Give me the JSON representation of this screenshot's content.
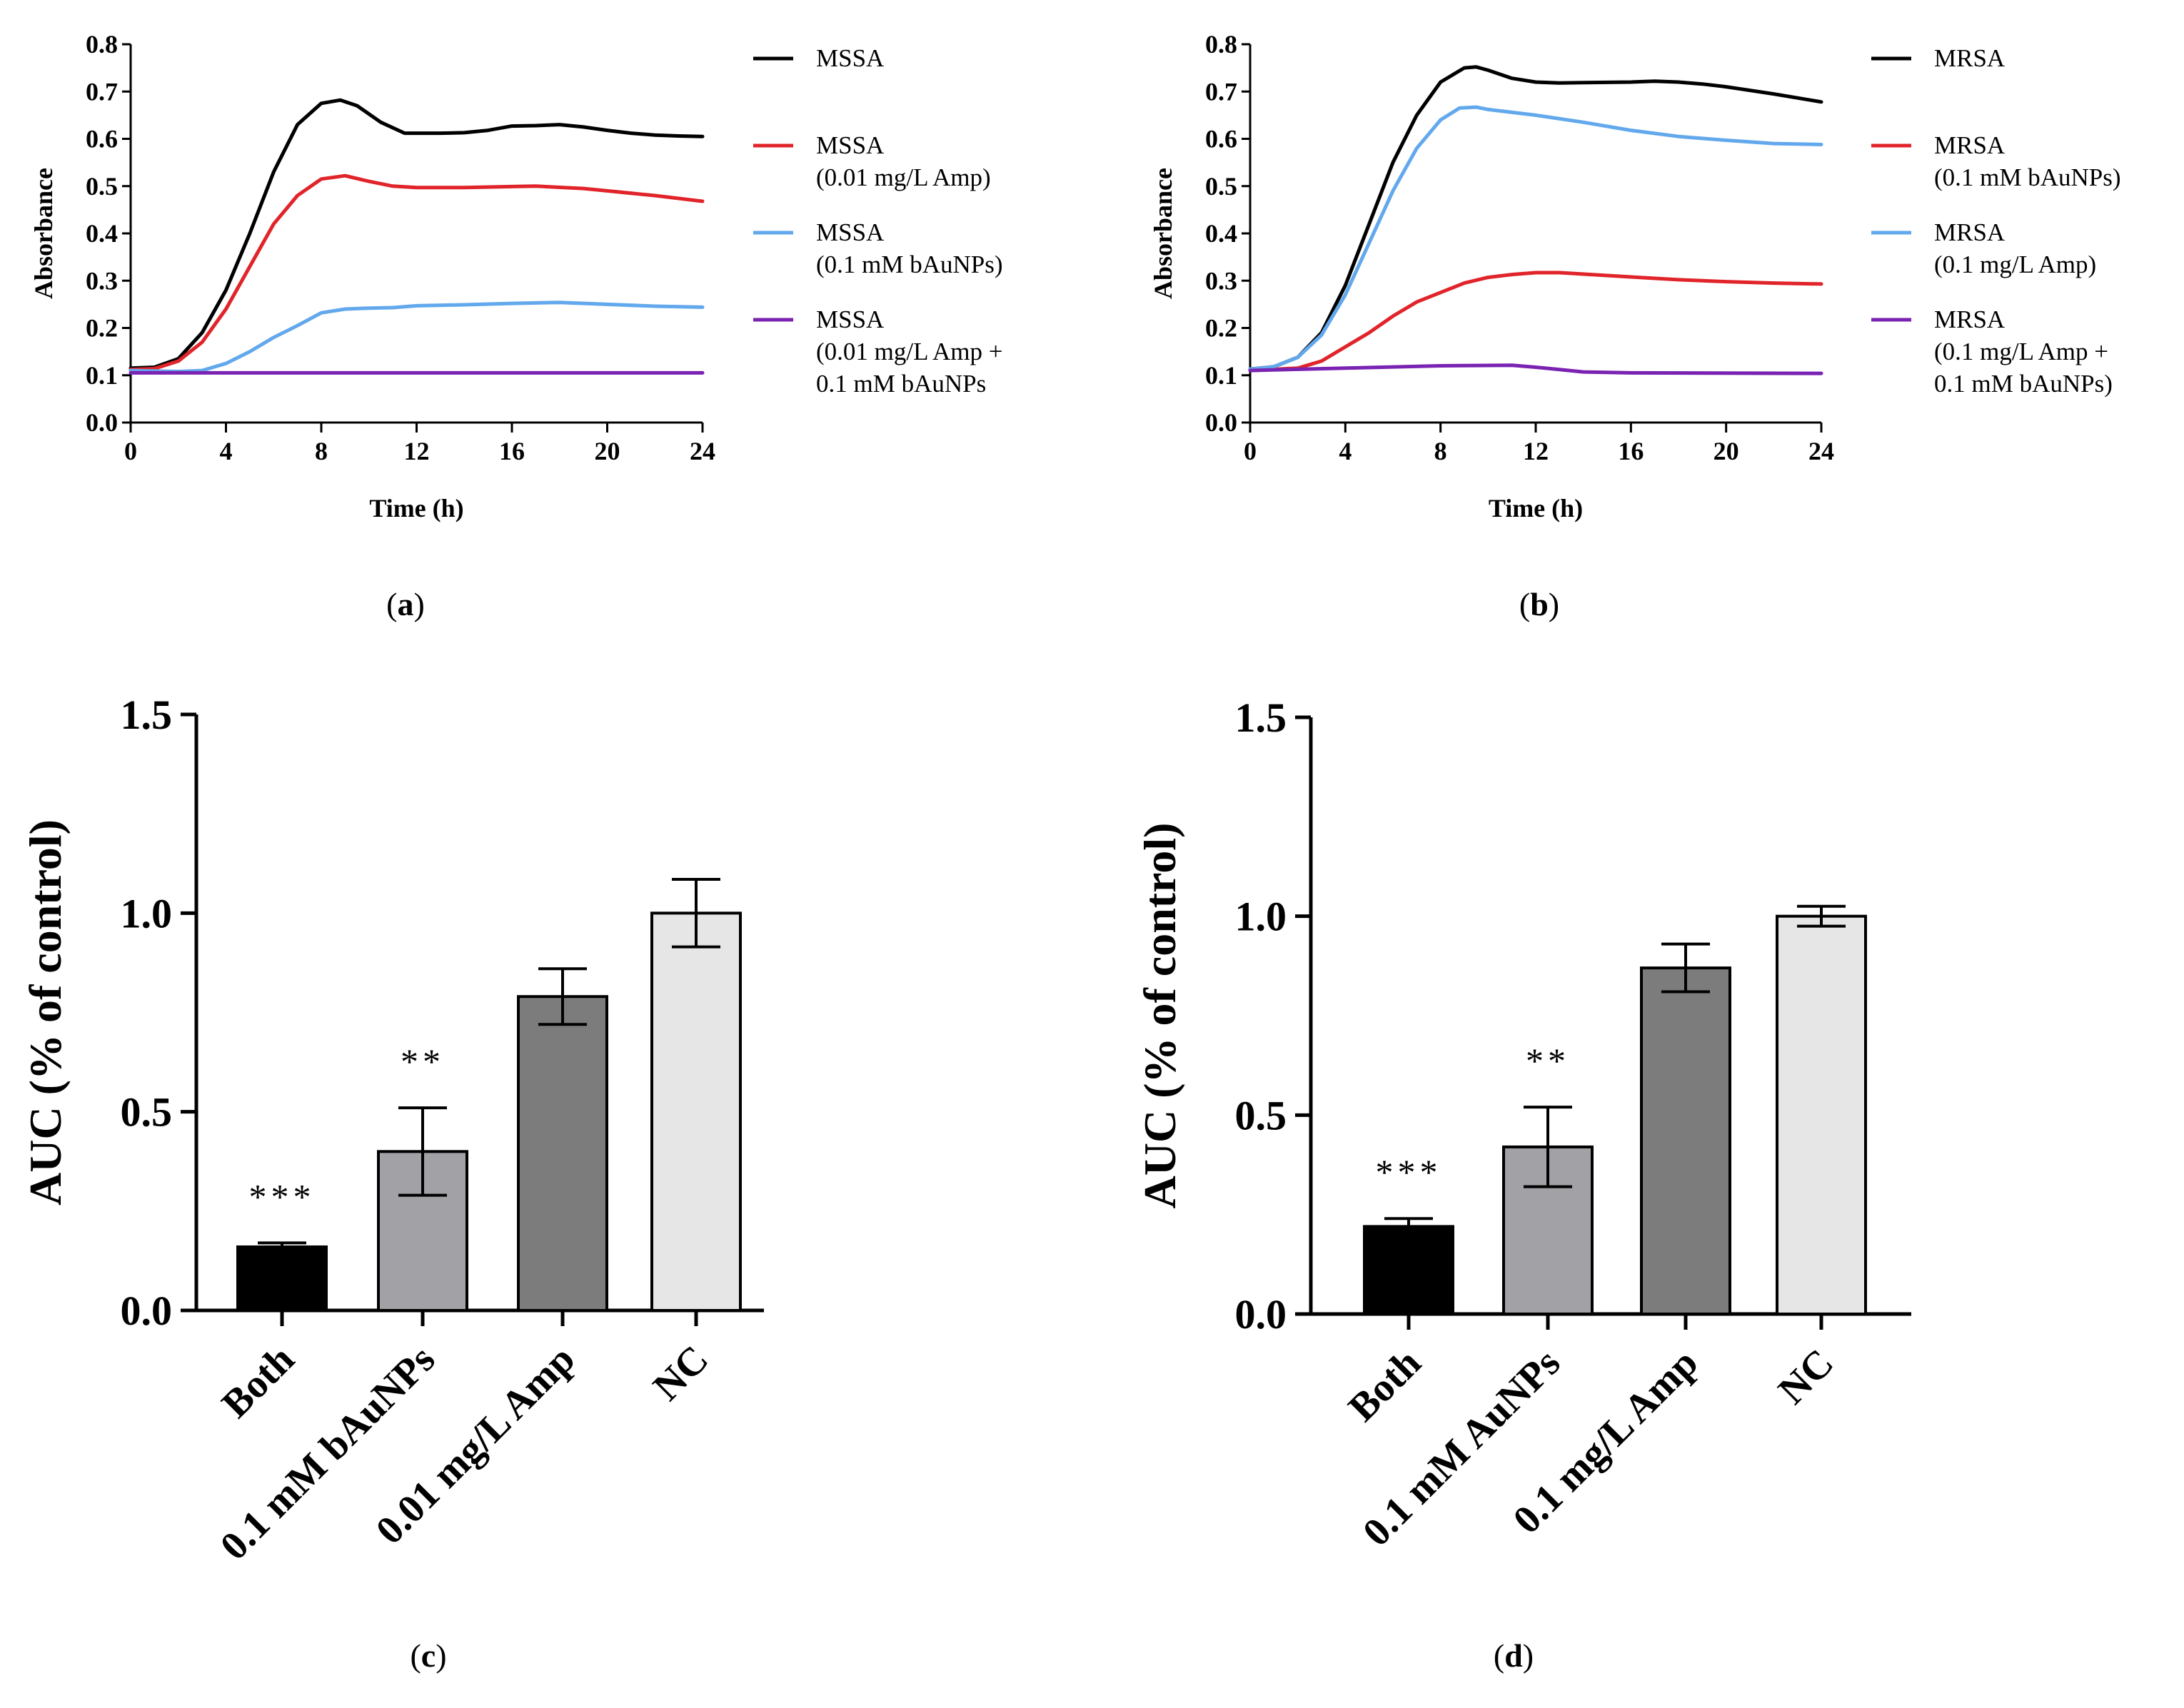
{
  "chart_data": [
    {
      "id": "a",
      "type": "line",
      "panel_label": "(a)",
      "xlabel": "Time (h)",
      "ylabel": "Absorbance",
      "xlim": [
        0,
        24
      ],
      "ylim": [
        0,
        0.8
      ],
      "x_ticks": [
        "0",
        "4",
        "8",
        "12",
        "16",
        "20",
        "24"
      ],
      "y_ticks": [
        "0.0",
        "0.1",
        "0.2",
        "0.3",
        "0.4",
        "0.5",
        "0.6",
        "0.7",
        "0.8"
      ],
      "legend_position": "right",
      "series": [
        {
          "name": "MSSA",
          "legend_lines": [
            "MSSA"
          ],
          "color": "#000000",
          "points": [
            [
              0,
              0.115
            ],
            [
              1,
              0.117
            ],
            [
              2,
              0.135
            ],
            [
              3,
              0.19
            ],
            [
              4,
              0.28
            ],
            [
              5,
              0.4
            ],
            [
              6,
              0.53
            ],
            [
              7,
              0.63
            ],
            [
              8,
              0.675
            ],
            [
              8.8,
              0.682
            ],
            [
              9.5,
              0.67
            ],
            [
              10.5,
              0.635
            ],
            [
              11.5,
              0.612
            ],
            [
              13,
              0.612
            ],
            [
              14,
              0.613
            ],
            [
              15,
              0.618
            ],
            [
              16,
              0.627
            ],
            [
              17,
              0.628
            ],
            [
              18,
              0.63
            ],
            [
              19,
              0.625
            ],
            [
              20,
              0.618
            ],
            [
              21,
              0.612
            ],
            [
              22,
              0.608
            ],
            [
              23,
              0.606
            ],
            [
              24,
              0.605
            ]
          ]
        },
        {
          "name": "MSSA (0.01 mg/L Amp)",
          "legend_lines": [
            "MSSA",
            "(0.01 mg/L Amp)"
          ],
          "color": "#e0242a",
          "points": [
            [
              0,
              0.112
            ],
            [
              1,
              0.114
            ],
            [
              2,
              0.13
            ],
            [
              3,
              0.17
            ],
            [
              4,
              0.24
            ],
            [
              5,
              0.33
            ],
            [
              6,
              0.42
            ],
            [
              7,
              0.48
            ],
            [
              8,
              0.515
            ],
            [
              9,
              0.522
            ],
            [
              10,
              0.51
            ],
            [
              11,
              0.5
            ],
            [
              12,
              0.497
            ],
            [
              14,
              0.497
            ],
            [
              16,
              0.499
            ],
            [
              17,
              0.5
            ],
            [
              19,
              0.495
            ],
            [
              20,
              0.49
            ],
            [
              22,
              0.48
            ],
            [
              24,
              0.468
            ]
          ]
        },
        {
          "name": "MSSA (0.1 mM bAuNPs)",
          "legend_lines": [
            "MSSA",
            "(0.1 mM bAuNPs)"
          ],
          "color": "#62a8ec",
          "points": [
            [
              0,
              0.11
            ],
            [
              2,
              0.108
            ],
            [
              3,
              0.11
            ],
            [
              4,
              0.125
            ],
            [
              5,
              0.15
            ],
            [
              6,
              0.18
            ],
            [
              7,
              0.205
            ],
            [
              8,
              0.232
            ],
            [
              9,
              0.24
            ],
            [
              10,
              0.242
            ],
            [
              11,
              0.243
            ],
            [
              12,
              0.247
            ],
            [
              14,
              0.249
            ],
            [
              16,
              0.252
            ],
            [
              18,
              0.254
            ],
            [
              20,
              0.25
            ],
            [
              22,
              0.246
            ],
            [
              24,
              0.244
            ]
          ]
        },
        {
          "name": "MSSA (0.01 mg/L Amp + 0.1 mM bAuNPs",
          "legend_lines": [
            "MSSA",
            "(0.01 mg/L Amp +",
            "0.1 mM bAuNPs"
          ],
          "color": "#7a22b2",
          "points": [
            [
              0,
              0.105
            ],
            [
              24,
              0.105
            ]
          ]
        }
      ]
    },
    {
      "id": "b",
      "type": "line",
      "panel_label": "(b)",
      "xlabel": "Time (h)",
      "ylabel": "Absorbance",
      "xlim": [
        0,
        24
      ],
      "ylim": [
        0,
        0.8
      ],
      "x_ticks": [
        "0",
        "4",
        "8",
        "12",
        "16",
        "20",
        "24"
      ],
      "y_ticks": [
        "0.0",
        "0.1",
        "0.2",
        "0.3",
        "0.4",
        "0.5",
        "0.6",
        "0.7",
        "0.8"
      ],
      "legend_position": "right",
      "series": [
        {
          "name": "MRSA",
          "legend_lines": [
            "MRSA"
          ],
          "color": "#000000",
          "points": [
            [
              0,
              0.113
            ],
            [
              1,
              0.118
            ],
            [
              2,
              0.138
            ],
            [
              3,
              0.19
            ],
            [
              4,
              0.29
            ],
            [
              5,
              0.42
            ],
            [
              6,
              0.55
            ],
            [
              7,
              0.65
            ],
            [
              8,
              0.72
            ],
            [
              9,
              0.75
            ],
            [
              9.5,
              0.752
            ],
            [
              10,
              0.745
            ],
            [
              11,
              0.728
            ],
            [
              12,
              0.72
            ],
            [
              13,
              0.718
            ],
            [
              14,
              0.719
            ],
            [
              16,
              0.72
            ],
            [
              17,
              0.722
            ],
            [
              18,
              0.72
            ],
            [
              19,
              0.716
            ],
            [
              20,
              0.71
            ],
            [
              22,
              0.695
            ],
            [
              24,
              0.678
            ]
          ]
        },
        {
          "name": "MRSA (0.1 mM bAuNPs)",
          "legend_lines": [
            "MRSA",
            "(0.1 mM bAuNPs)"
          ],
          "color": "#e0242a",
          "points": [
            [
              0,
              0.11
            ],
            [
              2,
              0.115
            ],
            [
              3,
              0.13
            ],
            [
              4,
              0.16
            ],
            [
              5,
              0.19
            ],
            [
              6,
              0.225
            ],
            [
              7,
              0.255
            ],
            [
              8,
              0.275
            ],
            [
              9,
              0.295
            ],
            [
              10,
              0.307
            ],
            [
              11,
              0.313
            ],
            [
              12,
              0.317
            ],
            [
              13,
              0.317
            ],
            [
              14,
              0.314
            ],
            [
              16,
              0.308
            ],
            [
              18,
              0.302
            ],
            [
              20,
              0.298
            ],
            [
              22,
              0.295
            ],
            [
              24,
              0.293
            ]
          ]
        },
        {
          "name": "MRSA (0.1 mg/L Amp)",
          "legend_lines": [
            "MRSA",
            "(0.1 mg/L Amp)"
          ],
          "color": "#62a8ec",
          "points": [
            [
              0,
              0.113
            ],
            [
              1,
              0.118
            ],
            [
              2,
              0.138
            ],
            [
              3,
              0.185
            ],
            [
              4,
              0.27
            ],
            [
              5,
              0.38
            ],
            [
              6,
              0.49
            ],
            [
              7,
              0.58
            ],
            [
              8,
              0.64
            ],
            [
              8.8,
              0.665
            ],
            [
              9.5,
              0.667
            ],
            [
              10,
              0.662
            ],
            [
              12,
              0.65
            ],
            [
              14,
              0.635
            ],
            [
              16,
              0.618
            ],
            [
              18,
              0.605
            ],
            [
              20,
              0.597
            ],
            [
              22,
              0.59
            ],
            [
              24,
              0.588
            ]
          ]
        },
        {
          "name": "MRSA (0.1 mg/L Amp + 0.1 mM bAuNPs)",
          "legend_lines": [
            "MRSA",
            "(0.1 mg/L Amp +",
            "0.1 mM bAuNPs)"
          ],
          "color": "#7a22b2",
          "points": [
            [
              0,
              0.11
            ],
            [
              4,
              0.115
            ],
            [
              8,
              0.12
            ],
            [
              11,
              0.121
            ],
            [
              12,
              0.117
            ],
            [
              13,
              0.112
            ],
            [
              14,
              0.107
            ],
            [
              16,
              0.105
            ],
            [
              24,
              0.104
            ]
          ]
        }
      ]
    },
    {
      "id": "c",
      "type": "bar",
      "panel_label": "(c)",
      "ylabel": "AUC (% of control)",
      "ylim": [
        0,
        1.5
      ],
      "y_ticks": [
        "0.0",
        "0.5",
        "1.0",
        "1.5"
      ],
      "categories": [
        "Both",
        "0.1 mM bAuNPs",
        "0.01 mg/L Amp",
        "NC"
      ],
      "values": [
        0.16,
        0.4,
        0.79,
        1.0
      ],
      "errors": [
        0.01,
        0.11,
        0.07,
        0.085
      ],
      "significance": [
        "***",
        "**",
        "",
        ""
      ],
      "colors": [
        "#000000",
        "#a1a1a6",
        "#7c7c7c",
        "#e6e6e6"
      ]
    },
    {
      "id": "d",
      "type": "bar",
      "panel_label": "(d)",
      "ylabel": "AUC (% of control)",
      "ylim": [
        0,
        1.5
      ],
      "y_ticks": [
        "0.0",
        "0.5",
        "1.0",
        "1.5"
      ],
      "categories": [
        "Both",
        "0.1 mM AuNPs",
        "0.1 mg/L Amp",
        "NC"
      ],
      "values": [
        0.22,
        0.42,
        0.87,
        1.0
      ],
      "errors": [
        0.02,
        0.1,
        0.06,
        0.025
      ],
      "significance": [
        "***",
        "**",
        "",
        ""
      ],
      "colors": [
        "#000000",
        "#a1a1a6",
        "#7c7c7c",
        "#e6e6e6"
      ]
    }
  ]
}
